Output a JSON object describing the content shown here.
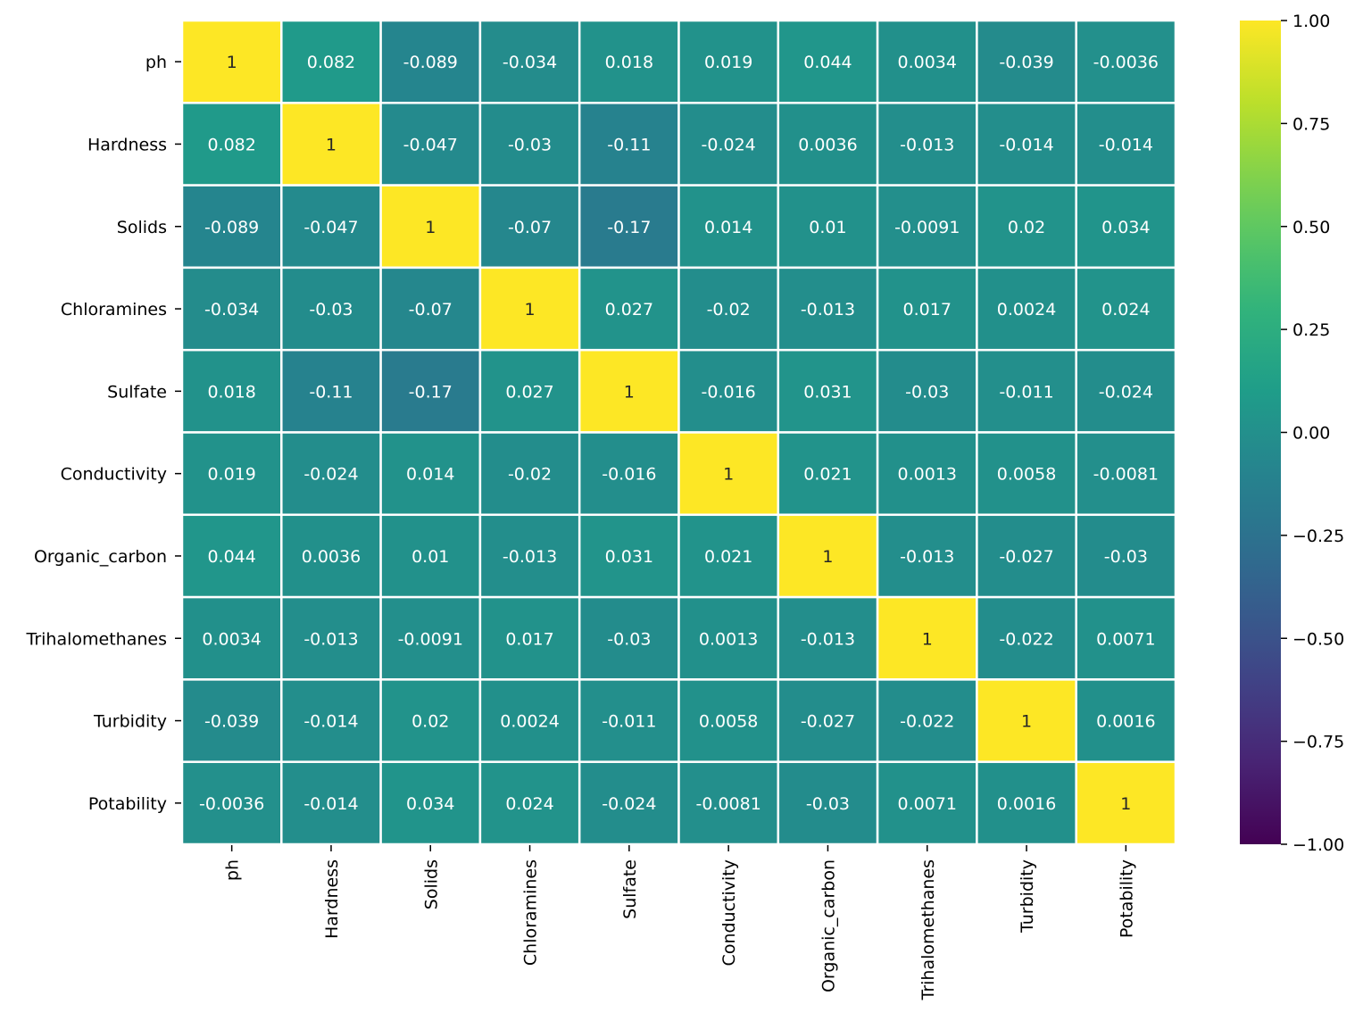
{
  "chart_data": {
    "type": "heatmap",
    "title": "",
    "xlabel": "",
    "ylabel": "",
    "rows": [
      "ph",
      "Hardness",
      "Solids",
      "Chloramines",
      "Sulfate",
      "Conductivity",
      "Organic_carbon",
      "Trihalomethanes",
      "Turbidity",
      "Potability"
    ],
    "columns": [
      "ph",
      "Hardness",
      "Solids",
      "Chloramines",
      "Sulfate",
      "Conductivity",
      "Organic_carbon",
      "Trihalomethanes",
      "Turbidity",
      "Potability"
    ],
    "values": [
      [
        1,
        0.082,
        -0.089,
        -0.034,
        0.018,
        0.019,
        0.044,
        0.0034,
        -0.039,
        -0.0036
      ],
      [
        0.082,
        1,
        -0.047,
        -0.03,
        -0.11,
        -0.024,
        0.0036,
        -0.013,
        -0.014,
        -0.014
      ],
      [
        -0.089,
        -0.047,
        1,
        -0.07,
        -0.17,
        0.014,
        0.01,
        -0.0091,
        0.02,
        0.034
      ],
      [
        -0.034,
        -0.03,
        -0.07,
        1,
        0.027,
        -0.02,
        -0.013,
        0.017,
        0.0024,
        0.024
      ],
      [
        0.018,
        -0.11,
        -0.17,
        0.027,
        1,
        -0.016,
        0.031,
        -0.03,
        -0.011,
        -0.024
      ],
      [
        0.019,
        -0.024,
        0.014,
        -0.02,
        -0.016,
        1,
        0.021,
        0.0013,
        0.0058,
        -0.0081
      ],
      [
        0.044,
        0.0036,
        0.01,
        -0.013,
        0.031,
        0.021,
        1,
        -0.013,
        -0.027,
        -0.03
      ],
      [
        0.0034,
        -0.013,
        -0.0091,
        0.017,
        -0.03,
        0.0013,
        -0.013,
        1,
        -0.022,
        0.0071
      ],
      [
        -0.039,
        -0.014,
        0.02,
        0.0024,
        -0.011,
        0.0058,
        -0.027,
        -0.022,
        1,
        0.0016
      ],
      [
        -0.0036,
        -0.014,
        0.034,
        0.024,
        -0.024,
        -0.0081,
        -0.03,
        0.0071,
        0.0016,
        1
      ]
    ],
    "labels": [
      [
        "1",
        "0.082",
        "-0.089",
        "-0.034",
        "0.018",
        "0.019",
        "0.044",
        "0.0034",
        "-0.039",
        "-0.0036"
      ],
      [
        "0.082",
        "1",
        "-0.047",
        "-0.03",
        "-0.11",
        "-0.024",
        "0.0036",
        "-0.013",
        "-0.014",
        "-0.014"
      ],
      [
        "-0.089",
        "-0.047",
        "1",
        "-0.07",
        "-0.17",
        "0.014",
        "0.01",
        "-0.0091",
        "0.02",
        "0.034"
      ],
      [
        "-0.034",
        "-0.03",
        "-0.07",
        "1",
        "0.027",
        "-0.02",
        "-0.013",
        "0.017",
        "0.0024",
        "0.024"
      ],
      [
        "0.018",
        "-0.11",
        "-0.17",
        "0.027",
        "1",
        "-0.016",
        "0.031",
        "-0.03",
        "-0.011",
        "-0.024"
      ],
      [
        "0.019",
        "-0.024",
        "0.014",
        "-0.02",
        "-0.016",
        "1",
        "0.021",
        "0.0013",
        "0.0058",
        "-0.0081"
      ],
      [
        "0.044",
        "0.0036",
        "0.01",
        "-0.013",
        "0.031",
        "0.021",
        "1",
        "-0.013",
        "-0.027",
        "-0.03"
      ],
      [
        "0.0034",
        "-0.013",
        "-0.0091",
        "0.017",
        "-0.03",
        "0.0013",
        "-0.013",
        "1",
        "-0.022",
        "0.0071"
      ],
      [
        "-0.039",
        "-0.014",
        "0.02",
        "0.0024",
        "-0.011",
        "0.0058",
        "-0.027",
        "-0.022",
        "1",
        "0.0016"
      ],
      [
        "-0.0036",
        "-0.014",
        "0.034",
        "0.024",
        "-0.024",
        "-0.0081",
        "-0.03",
        "0.0071",
        "0.0016",
        "1"
      ]
    ],
    "colormap": "viridis",
    "vmin": -1,
    "vmax": 1,
    "colorbar_ticks": [
      1.0,
      0.75,
      0.5,
      0.25,
      0.0,
      -0.25,
      -0.5,
      -0.75,
      -1.0
    ],
    "colorbar_tick_labels": [
      "1.00",
      "0.75",
      "0.50",
      "0.25",
      "0.00",
      "−0.25",
      "−0.50",
      "−0.75",
      "−1.00"
    ],
    "cell_border_color": "#ffffff",
    "annotation_text_dark": "#262626",
    "annotation_text_light": "#ffffff",
    "grid": false,
    "legend": "colorbar-right"
  }
}
